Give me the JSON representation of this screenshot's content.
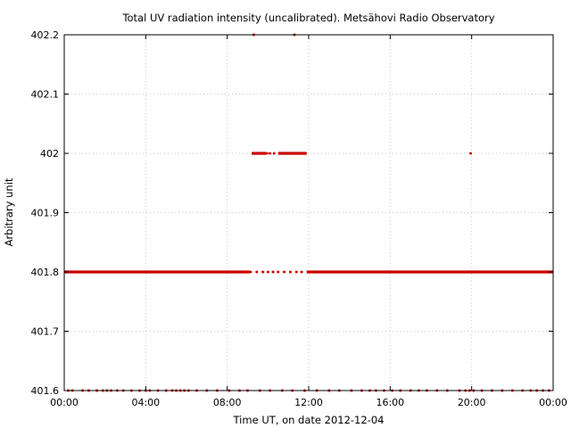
{
  "chart_data": {
    "type": "scatter",
    "title": "Total UV radiation intensity (uncalibrated). Metsähovi Radio Observatory",
    "xlabel": "Time UT, on date 2012-12-04",
    "ylabel": "Arbitrary unit",
    "xlim": [
      0,
      24
    ],
    "ylim": [
      401.6,
      402.2
    ],
    "grid": true,
    "point_color": "#cc0000",
    "x_ticks": [
      {
        "value": 0,
        "label": "00:00"
      },
      {
        "value": 4,
        "label": "04:00"
      },
      {
        "value": 8,
        "label": "08:00"
      },
      {
        "value": 12,
        "label": "12:00"
      },
      {
        "value": 16,
        "label": "16:00"
      },
      {
        "value": 20,
        "label": "20:00"
      },
      {
        "value": 24,
        "label": "00:00"
      }
    ],
    "y_ticks": [
      {
        "value": 401.6,
        "label": "401.6"
      },
      {
        "value": 401.7,
        "label": "401.7"
      },
      {
        "value": 401.8,
        "label": "401.8"
      },
      {
        "value": 401.9,
        "label": "401.9"
      },
      {
        "value": 402.0,
        "label": "402"
      },
      {
        "value": 402.1,
        "label": "402.1"
      },
      {
        "value": 402.2,
        "label": "402.2"
      }
    ],
    "series": [
      {
        "dense_runs": [
          {
            "y": 401.8,
            "x_start": 0.0,
            "x_end": 9.1
          },
          {
            "y": 401.8,
            "x_start": 11.9,
            "x_end": 24.0
          },
          {
            "y": 402.0,
            "x_start": 9.2,
            "x_end": 9.9
          },
          {
            "y": 402.0,
            "x_start": 10.5,
            "x_end": 11.9
          }
        ],
        "points": [
          {
            "x": 9.3,
            "y": 402.2
          },
          {
            "x": 11.3,
            "y": 402.2
          },
          {
            "x": 9.95,
            "y": 402.0
          },
          {
            "x": 10.1,
            "y": 402.0
          },
          {
            "x": 10.3,
            "y": 402.0
          },
          {
            "x": 19.95,
            "y": 402.0
          },
          {
            "x": 9.15,
            "y": 401.8
          },
          {
            "x": 9.45,
            "y": 401.8
          },
          {
            "x": 9.75,
            "y": 401.8
          },
          {
            "x": 10.0,
            "y": 401.8
          },
          {
            "x": 10.25,
            "y": 401.8
          },
          {
            "x": 10.5,
            "y": 401.8
          },
          {
            "x": 10.8,
            "y": 401.8
          },
          {
            "x": 11.1,
            "y": 401.8
          },
          {
            "x": 11.4,
            "y": 401.8
          },
          {
            "x": 11.65,
            "y": 401.8
          },
          {
            "x": 0.2,
            "y": 401.6
          },
          {
            "x": 0.4,
            "y": 401.6
          },
          {
            "x": 0.9,
            "y": 401.6
          },
          {
            "x": 1.2,
            "y": 401.6
          },
          {
            "x": 1.6,
            "y": 401.6
          },
          {
            "x": 1.9,
            "y": 401.6
          },
          {
            "x": 2.1,
            "y": 401.6
          },
          {
            "x": 2.3,
            "y": 401.6
          },
          {
            "x": 2.6,
            "y": 401.6
          },
          {
            "x": 2.9,
            "y": 401.6
          },
          {
            "x": 3.3,
            "y": 401.6
          },
          {
            "x": 3.7,
            "y": 401.6
          },
          {
            "x": 4.0,
            "y": 401.6
          },
          {
            "x": 4.2,
            "y": 401.6
          },
          {
            "x": 4.6,
            "y": 401.6
          },
          {
            "x": 5.0,
            "y": 401.6
          },
          {
            "x": 5.3,
            "y": 401.6
          },
          {
            "x": 5.5,
            "y": 401.6
          },
          {
            "x": 5.7,
            "y": 401.6
          },
          {
            "x": 5.9,
            "y": 401.6
          },
          {
            "x": 6.1,
            "y": 401.6
          },
          {
            "x": 6.5,
            "y": 401.6
          },
          {
            "x": 7.0,
            "y": 401.6
          },
          {
            "x": 7.5,
            "y": 401.6
          },
          {
            "x": 8.1,
            "y": 401.6
          },
          {
            "x": 8.6,
            "y": 401.6
          },
          {
            "x": 9.0,
            "y": 401.6
          },
          {
            "x": 9.6,
            "y": 401.6
          },
          {
            "x": 10.1,
            "y": 401.6
          },
          {
            "x": 10.7,
            "y": 401.6
          },
          {
            "x": 11.2,
            "y": 401.6
          },
          {
            "x": 11.8,
            "y": 401.6
          },
          {
            "x": 12.4,
            "y": 401.6
          },
          {
            "x": 13.0,
            "y": 401.6
          },
          {
            "x": 13.5,
            "y": 401.6
          },
          {
            "x": 14.1,
            "y": 401.6
          },
          {
            "x": 14.6,
            "y": 401.6
          },
          {
            "x": 15.0,
            "y": 401.6
          },
          {
            "x": 15.3,
            "y": 401.6
          },
          {
            "x": 15.7,
            "y": 401.6
          },
          {
            "x": 16.1,
            "y": 401.6
          },
          {
            "x": 16.5,
            "y": 401.6
          },
          {
            "x": 17.0,
            "y": 401.6
          },
          {
            "x": 17.4,
            "y": 401.6
          },
          {
            "x": 17.8,
            "y": 401.6
          },
          {
            "x": 18.3,
            "y": 401.6
          },
          {
            "x": 18.8,
            "y": 401.6
          },
          {
            "x": 19.4,
            "y": 401.6
          },
          {
            "x": 19.7,
            "y": 401.6
          },
          {
            "x": 19.9,
            "y": 401.6
          },
          {
            "x": 20.1,
            "y": 401.6
          },
          {
            "x": 20.5,
            "y": 401.6
          },
          {
            "x": 21.0,
            "y": 401.6
          },
          {
            "x": 21.5,
            "y": 401.6
          },
          {
            "x": 22.0,
            "y": 401.6
          },
          {
            "x": 22.5,
            "y": 401.6
          },
          {
            "x": 22.9,
            "y": 401.6
          },
          {
            "x": 23.2,
            "y": 401.6
          },
          {
            "x": 23.5,
            "y": 401.6
          },
          {
            "x": 23.8,
            "y": 401.6
          }
        ]
      }
    ]
  }
}
